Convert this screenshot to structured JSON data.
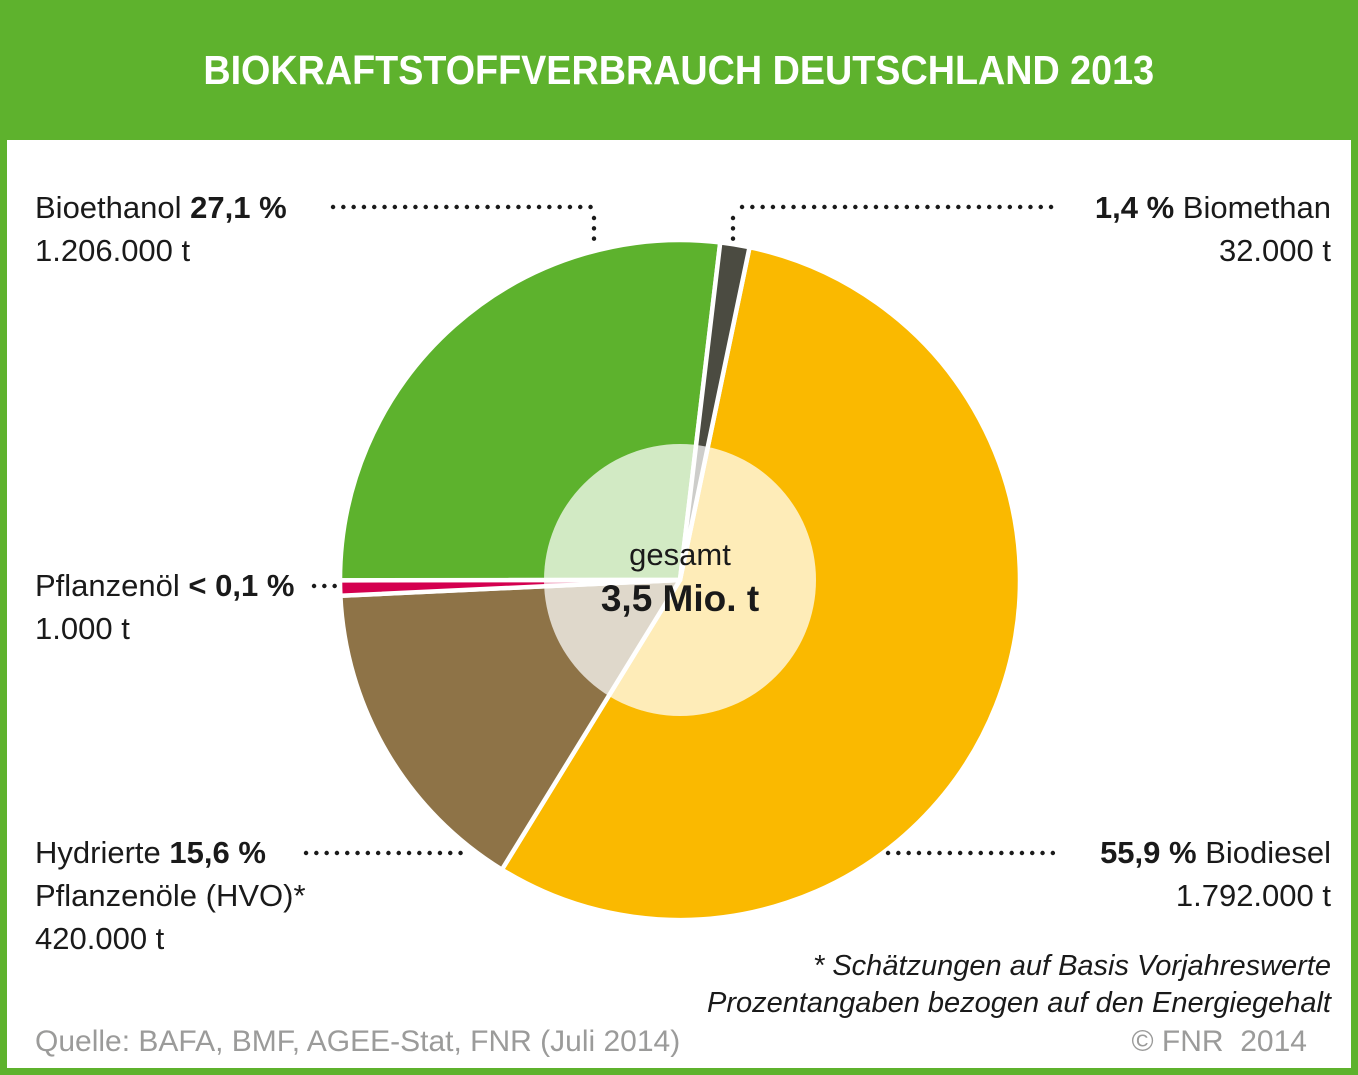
{
  "header": {
    "title": "BIOKRAFTSTOFFVERBRAUCH DEUTSCHLAND 2013"
  },
  "chart_data": {
    "type": "pie",
    "title": "BIOKRAFTSTOFFVERBRAUCH DEUTSCHLAND 2013",
    "unit": "t",
    "total": {
      "label": "gesamt",
      "value": "3,5 Mio. t"
    },
    "start_angle_deg": 6.8,
    "legend_position": "callouts-around-pie",
    "slices": [
      {
        "id": "biomethan",
        "name": "Biomethan",
        "pct": 1.4,
        "pct_label": "1,4 %",
        "tonnage": "32.000 t",
        "tonnage_value": 32000,
        "color": "#4b4b41"
      },
      {
        "id": "biodiesel",
        "name": "Biodiesel",
        "pct": 55.9,
        "pct_label": "55,9 %",
        "tonnage": "1.792.000 t",
        "tonnage_value": 1792000,
        "color": "#fab900"
      },
      {
        "id": "hvo",
        "name": "Hydrierte Pflanzenöle (HVO)*",
        "pct": 15.6,
        "pct_label": "15,6 %",
        "tonnage": "420.000 t",
        "tonnage_value": 420000,
        "color": "#8e7347"
      },
      {
        "id": "pflanzenoel",
        "name": "Pflanzenöl",
        "pct": 0.1,
        "pct_label": "< 0,1 %",
        "tonnage": "1.000 t",
        "tonnage_value": 1000,
        "color": "#d4004f",
        "min_visual_deg": 2.6
      },
      {
        "id": "bioethanol",
        "name": "Bioethanol",
        "pct": 27.1,
        "pct_label": "27,1 %",
        "tonnage": "1.206.000 t",
        "tonnage_value": 1206000,
        "color": "#5db22d"
      }
    ]
  },
  "callouts": {
    "bioethanol": {
      "prefix": "Bioethanol ",
      "pct": "27,1 %",
      "line2": "1.206.000 t"
    },
    "biomethan": {
      "pct": "1,4 %",
      "suffix": " Biomethan",
      "line2": "32.000 t"
    },
    "pflanzenoel": {
      "prefix": "Pflanzenöl ",
      "pct": "< 0,1 %",
      "line2": "1.000 t"
    },
    "hvo": {
      "prefix": "Hydrierte ",
      "pct": "15,6 %",
      "line2": "Pflanzenöle (HVO)*",
      "line3": "420.000 t"
    },
    "biodiesel": {
      "pct": "55,9 %",
      "suffix": " Biodiesel",
      "line2": "1.792.000 t"
    }
  },
  "center": {
    "label": "gesamt",
    "value": "3,5 Mio. t"
  },
  "footnotes": {
    "line1": "* Schätzungen auf Basis Vorjahreswerte",
    "line2": "Prozentangaben bezogen auf den Energiegehalt"
  },
  "source": "Quelle: BAFA, BMF, AGEE-Stat, FNR (Juli 2014)",
  "copyright": "© FNR  2014",
  "colors": {
    "brand_green": "#5eb22d",
    "text_black": "#1a1a1a",
    "text_gray": "#9b9b9a",
    "center_overlay": "rgba(255,255,255,0.72)",
    "leader_dots": "#1a1a1a"
  }
}
